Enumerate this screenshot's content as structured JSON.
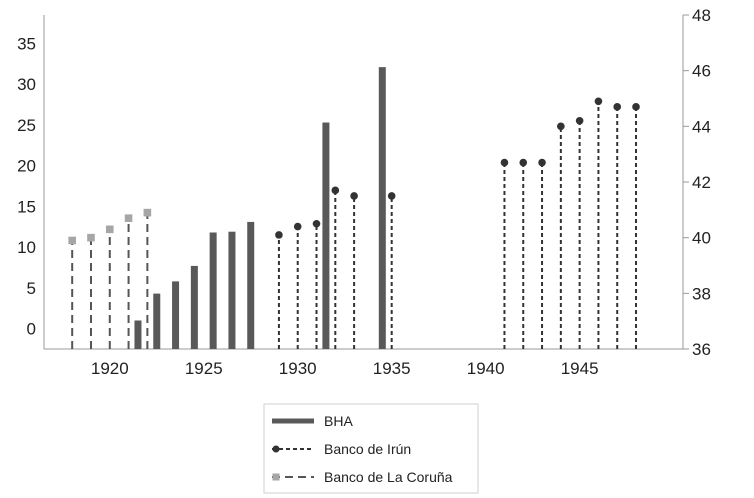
{
  "chart_data": {
    "type": "bar",
    "x_ticks": [
      "1920",
      "1925",
      "1930",
      "1935",
      "1940",
      "1945"
    ],
    "x_tick_values": [
      1920,
      1925,
      1930,
      1935,
      1940,
      1945
    ],
    "xlim": [
      1916.5,
      1950.5
    ],
    "y_left": {
      "lim": [
        -2.5,
        38.5
      ],
      "ticks": [
        "0",
        "5",
        "10",
        "15",
        "20",
        "25",
        "30",
        "35"
      ],
      "tick_values": [
        0,
        5,
        10,
        15,
        20,
        25,
        30,
        35
      ]
    },
    "y_right": {
      "lim": [
        36,
        48
      ],
      "ticks": [
        "36",
        "38",
        "40",
        "42",
        "44",
        "46",
        "48"
      ],
      "tick_values": [
        36,
        38,
        40,
        42,
        44,
        46,
        48
      ]
    },
    "legend_position": "bottom",
    "series": [
      {
        "name": "BHA",
        "kind": "bar",
        "axis": "left",
        "color": "#595959",
        "points": [
          {
            "x": 1921.5,
            "y": 1.0
          },
          {
            "x": 1922.5,
            "y": 4.3
          },
          {
            "x": 1923.5,
            "y": 5.8
          },
          {
            "x": 1924.5,
            "y": 7.7
          },
          {
            "x": 1925.5,
            "y": 11.8
          },
          {
            "x": 1926.5,
            "y": 11.9
          },
          {
            "x": 1927.5,
            "y": 13.1
          },
          {
            "x": 1931.5,
            "y": 25.3
          },
          {
            "x": 1934.5,
            "y": 32.1
          }
        ]
      },
      {
        "name": "Banco de Irún",
        "kind": "lollipop",
        "axis": "right",
        "color": "#333333",
        "marker": "circle",
        "dash": "4,3",
        "points": [
          {
            "x": 1929,
            "y": 40.1
          },
          {
            "x": 1930,
            "y": 40.4
          },
          {
            "x": 1931,
            "y": 40.5
          },
          {
            "x": 1932,
            "y": 41.7
          },
          {
            "x": 1933,
            "y": 41.5
          },
          {
            "x": 1935,
            "y": 41.5
          },
          {
            "x": 1941,
            "y": 42.7
          },
          {
            "x": 1942,
            "y": 42.7
          },
          {
            "x": 1943,
            "y": 42.7
          },
          {
            "x": 1944,
            "y": 44.0
          },
          {
            "x": 1945,
            "y": 44.2
          },
          {
            "x": 1946,
            "y": 44.9
          },
          {
            "x": 1947,
            "y": 44.7
          },
          {
            "x": 1948,
            "y": 44.7
          }
        ]
      },
      {
        "name": "Banco de La Coruña",
        "kind": "lollipop",
        "axis": "right",
        "color": "#555555",
        "marker_color": "#a6a6a6",
        "marker": "square",
        "dash": "8,5",
        "points": [
          {
            "x": 1918,
            "y": 39.9
          },
          {
            "x": 1919,
            "y": 40.0
          },
          {
            "x": 1920,
            "y": 40.3
          },
          {
            "x": 1921,
            "y": 40.7
          },
          {
            "x": 1922,
            "y": 40.9
          }
        ]
      }
    ]
  }
}
